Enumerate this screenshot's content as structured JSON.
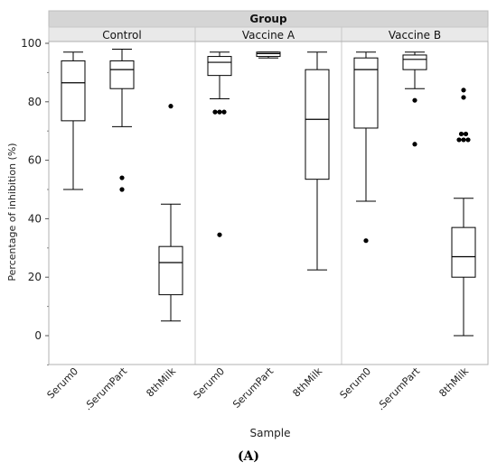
{
  "chart_data": {
    "type": "boxplot",
    "group_title": "Group",
    "groups": [
      "Control",
      "Vaccine A",
      "Vaccine B"
    ],
    "categories": [
      "Serum0",
      "SerumPart",
      "8thMilk"
    ],
    "tick_labels": {
      "Control": [
        "Serum0",
        ".SerumPart",
        "8thMilk"
      ],
      "Vaccine A": [
        "Serum0",
        "SerumPart",
        "8thMilk"
      ],
      "Vaccine B": [
        "Serum0",
        ".SerumPart",
        "8thMilk"
      ]
    },
    "xlabel": "Sample",
    "ylabel": "Percentage of inhibition (%)",
    "ylim": [
      -10,
      100
    ],
    "yticks": [
      0,
      20,
      40,
      60,
      80,
      100
    ],
    "grid": false,
    "boxes": [
      {
        "group": "Control",
        "sample": "Serum0",
        "min": 50,
        "q1": 73.5,
        "median": 86.5,
        "q3": 94,
        "max": 97,
        "outliers": []
      },
      {
        "group": "Control",
        "sample": "SerumPart",
        "min": 71.5,
        "q1": 84.5,
        "median": 91,
        "q3": 94,
        "max": 98,
        "outliers": [
          54,
          50
        ]
      },
      {
        "group": "Control",
        "sample": "8thMilk",
        "min": 5,
        "q1": 14,
        "median": 25,
        "q3": 30.5,
        "max": 45,
        "outliers": [
          78.5
        ]
      },
      {
        "group": "Vaccine A",
        "sample": "Serum0",
        "min": 81,
        "q1": 89,
        "median": 93.5,
        "q3": 95.5,
        "max": 97,
        "outliers": [
          76.5,
          76.5,
          76.5,
          34.5
        ]
      },
      {
        "group": "Vaccine A",
        "sample": "SerumPart",
        "min": 95,
        "q1": 95.5,
        "median": 96.5,
        "q3": 97,
        "max": 97,
        "outliers": []
      },
      {
        "group": "Vaccine A",
        "sample": "8thMilk",
        "min": 22.5,
        "q1": 53.5,
        "median": 74,
        "q3": 91,
        "max": 97,
        "outliers": []
      },
      {
        "group": "Vaccine B",
        "sample": "Serum0",
        "min": 46,
        "q1": 71,
        "median": 91,
        "q3": 95,
        "max": 97,
        "outliers": [
          32.5
        ]
      },
      {
        "group": "Vaccine B",
        "sample": "SerumPart",
        "min": 84.5,
        "q1": 91,
        "median": 94.5,
        "q3": 96,
        "max": 97,
        "outliers": [
          80.5,
          65.5
        ]
      },
      {
        "group": "Vaccine B",
        "sample": "8thMilk",
        "min": 0,
        "q1": 20,
        "median": 27,
        "q3": 37,
        "max": 47,
        "outliers": [
          84,
          81.5,
          69,
          69,
          67,
          67,
          67
        ]
      }
    ]
  },
  "figure_label": "(A)"
}
